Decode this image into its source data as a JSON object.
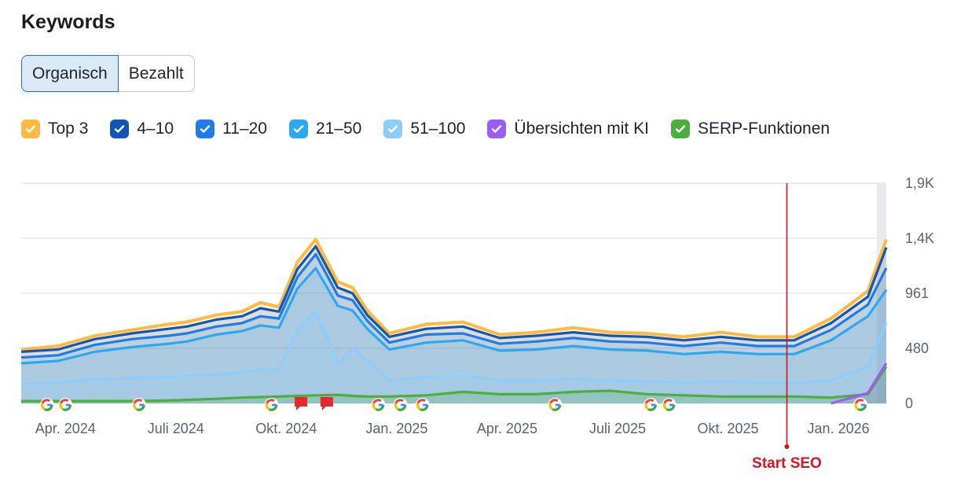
{
  "header": {
    "title": "Keywords"
  },
  "toggle": {
    "organic": "Organisch",
    "paid": "Bezahlt"
  },
  "legend": [
    {
      "label": "Top 3",
      "color": "#fdb940"
    },
    {
      "label": "4–10",
      "color": "#1157b1"
    },
    {
      "label": "11–20",
      "color": "#1e7cea"
    },
    {
      "label": "21–50",
      "color": "#2ca8f1"
    },
    {
      "label": "51–100",
      "color": "#8ccdfa"
    },
    {
      "label": "Übersichten mit KI",
      "color": "#9b5cf0"
    },
    {
      "label": "SERP-Funktionen",
      "color": "#4cae3e"
    }
  ],
  "chart_data": {
    "type": "area",
    "title": "Keywords",
    "x_labels": [
      "Apr. 2024",
      "Juli 2024",
      "Okt. 2024",
      "Jan. 2025",
      "Apr. 2025",
      "Juli 2025",
      "Okt. 2025",
      "Jan. 2026"
    ],
    "y_tick_labels": [
      "0",
      "480",
      "961",
      "1,4K",
      "1,9K"
    ],
    "y_ticks": [
      0,
      480,
      961,
      1440,
      1920
    ],
    "ylim": [
      0,
      1920
    ],
    "x_range_months": [
      0,
      23.5
    ],
    "x": [
      0,
      1,
      2,
      3,
      4,
      4.5,
      5.3,
      6,
      6.5,
      7,
      7.5,
      8,
      8.6,
      9,
      9.4,
      10,
      11,
      12,
      13,
      14,
      15,
      16,
      17,
      18,
      19,
      20,
      21,
      22,
      23,
      23.5
    ],
    "series": [
      {
        "name": "Top 3",
        "color": "#fdb940",
        "values": [
          470,
          500,
          590,
          640,
          690,
          710,
          770,
          800,
          880,
          840,
          1230,
          1430,
          1060,
          1010,
          810,
          610,
          690,
          710,
          600,
          620,
          660,
          620,
          610,
          580,
          620,
          580,
          580,
          740,
          980,
          1430
        ]
      },
      {
        "name": "4–10",
        "color": "#1157b1",
        "values": [
          450,
          470,
          560,
          610,
          650,
          670,
          730,
          760,
          830,
          800,
          1170,
          1370,
          1010,
          960,
          770,
          580,
          650,
          670,
          570,
          590,
          620,
          590,
          580,
          550,
          580,
          550,
          550,
          700,
          930,
          1360
        ]
      },
      {
        "name": "11–20",
        "color": "#1e7cea",
        "values": [
          400,
          420,
          510,
          560,
          590,
          610,
          670,
          700,
          760,
          740,
          1100,
          1300,
          940,
          900,
          720,
          530,
          600,
          610,
          520,
          540,
          570,
          540,
          530,
          500,
          530,
          500,
          500,
          640,
          860,
          1180
        ]
      },
      {
        "name": "21–50",
        "color": "#2ca8f1",
        "values": [
          350,
          370,
          450,
          490,
          520,
          540,
          600,
          630,
          680,
          660,
          1000,
          1180,
          850,
          810,
          650,
          470,
          530,
          550,
          460,
          470,
          500,
          470,
          460,
          430,
          450,
          430,
          430,
          550,
          760,
          990
        ]
      },
      {
        "name": "51–100",
        "color": "#8ccdfa",
        "values": [
          170,
          180,
          210,
          220,
          230,
          240,
          250,
          270,
          300,
          290,
          640,
          800,
          350,
          480,
          370,
          200,
          230,
          240,
          200,
          200,
          210,
          200,
          190,
          180,
          190,
          180,
          180,
          200,
          320,
          700
        ]
      },
      {
        "name": "Übersichten mit KI",
        "color": "#9b5cf0",
        "values": [
          0,
          0,
          0,
          0,
          0,
          0,
          0,
          0,
          0,
          0,
          0,
          0,
          0,
          0,
          0,
          0,
          0,
          0,
          0,
          0,
          0,
          0,
          0,
          0,
          0,
          0,
          0,
          0,
          90,
          350
        ]
      },
      {
        "name": "SERP-Funktionen",
        "color": "#4cae3e",
        "values": [
          20,
          20,
          20,
          20,
          25,
          30,
          40,
          50,
          55,
          60,
          65,
          70,
          75,
          65,
          60,
          60,
          70,
          100,
          80,
          80,
          100,
          110,
          80,
          70,
          60,
          60,
          60,
          50,
          80,
          320
        ]
      }
    ],
    "google_update_markers_months": [
      0.7,
      1.2,
      3.2,
      6.8,
      9.7,
      10.3,
      10.9,
      14.5,
      17.1,
      17.6,
      22.8
    ],
    "note_markers_months": [
      7.6,
      8.3
    ],
    "annotations": [
      {
        "label": "Start SEO",
        "x_month": 20.8
      }
    ]
  }
}
